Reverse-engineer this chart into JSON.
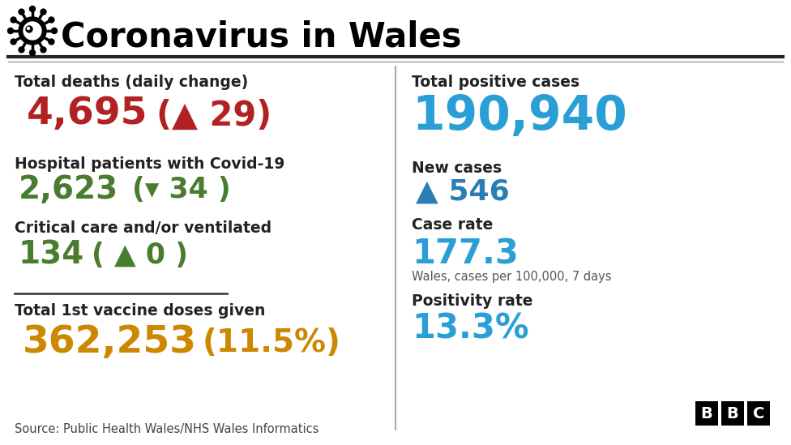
{
  "title": "Coronavirus in Wales",
  "bg_color": "#ffffff",
  "title_color": "#000000",
  "divider_color": "#222222",
  "left_panel": {
    "total_deaths_label": "Total deaths (daily change)",
    "total_deaths_value": "4,695",
    "total_deaths_change": "(▲ 29)",
    "total_deaths_color": "#b22222",
    "hospital_label": "Hospital patients with Covid-19",
    "hospital_value": "2,623",
    "hospital_change": "(▾ 34 )",
    "hospital_color": "#4a7c2f",
    "critical_label": "Critical care and/or ventilated",
    "critical_value": "134",
    "critical_change": "( ▲ 0 )",
    "critical_color": "#4a7c2f",
    "vaccine_label": "Total 1st vaccine doses given",
    "vaccine_value": "362,253",
    "vaccine_pct": "(11.5%)",
    "vaccine_color": "#cc8800",
    "source": "Source: Public Health Wales/NHS Wales Informatics"
  },
  "right_panel": {
    "total_cases_label": "Total positive cases",
    "total_cases_value": "190,940",
    "total_cases_color": "#2a9fd6",
    "new_cases_label": "New cases",
    "new_cases_value": "▲ 546",
    "new_cases_color": "#2a7db5",
    "case_rate_label": "Case rate",
    "case_rate_value": "177.3",
    "case_rate_color": "#2a9fd6",
    "case_rate_sub": "Wales, cases per 100,000, 7 days",
    "positivity_label": "Positivity rate",
    "positivity_value": "13.3%",
    "positivity_color": "#2a9fd6"
  }
}
